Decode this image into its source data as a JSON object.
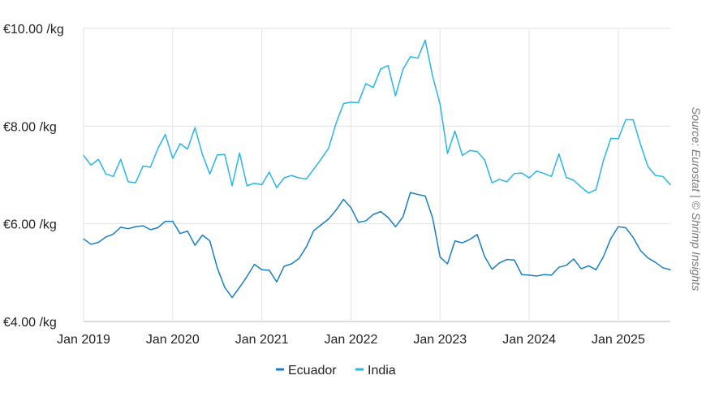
{
  "chart_data": {
    "type": "line",
    "source": "Source: Eurostat | © Shrimp Insights",
    "ylim": [
      4,
      10
    ],
    "yticks": [
      {
        "value": 10,
        "label": "€10.00 /kg"
      },
      {
        "value": 8,
        "label": "€8.00 /kg"
      },
      {
        "value": 6,
        "label": "€6.00 /kg"
      },
      {
        "value": 4,
        "label": "€4.00 /kg"
      }
    ],
    "xticks": [
      {
        "value": 0,
        "label": "Jan 2019"
      },
      {
        "value": 12,
        "label": "Jan 2020"
      },
      {
        "value": 24,
        "label": "Jan 2021"
      },
      {
        "value": 36,
        "label": "Jan 2022"
      },
      {
        "value": 48,
        "label": "Jan 2023"
      },
      {
        "value": 60,
        "label": "Jan 2024"
      },
      {
        "value": 72,
        "label": "Jan 2025"
      }
    ],
    "x_start": "Jan 2019",
    "grid": true,
    "legend": "bottom",
    "series": [
      {
        "name": "Ecuador",
        "color": "#1a7fc1",
        "values": [
          5.69,
          5.58,
          5.62,
          5.73,
          5.79,
          5.93,
          5.9,
          5.94,
          5.96,
          5.88,
          5.92,
          6.05,
          6.05,
          5.8,
          5.85,
          5.56,
          5.77,
          5.65,
          5.1,
          4.7,
          4.49,
          4.7,
          4.92,
          5.17,
          5.06,
          5.05,
          4.81,
          5.13,
          5.18,
          5.29,
          5.53,
          5.86,
          5.98,
          6.1,
          6.28,
          6.5,
          6.33,
          6.03,
          6.06,
          6.19,
          6.25,
          6.13,
          5.94,
          6.14,
          6.64,
          6.6,
          6.57,
          6.12,
          5.32,
          5.18,
          5.65,
          5.61,
          5.68,
          5.78,
          5.33,
          5.07,
          5.2,
          5.27,
          5.26,
          4.96,
          4.95,
          4.93,
          4.96,
          4.95,
          5.11,
          5.15,
          5.28,
          5.08,
          5.14,
          5.06,
          5.33,
          5.7,
          5.94,
          5.92,
          5.72,
          5.45,
          5.3,
          5.21,
          5.1,
          5.06
        ]
      },
      {
        "name": "India",
        "color": "#29b6e6",
        "values": [
          7.4,
          7.2,
          7.32,
          7.02,
          6.97,
          7.32,
          6.86,
          6.84,
          7.18,
          7.16,
          7.54,
          7.83,
          7.34,
          7.64,
          7.53,
          7.97,
          7.42,
          7.02,
          7.41,
          7.42,
          6.78,
          7.45,
          6.78,
          6.83,
          6.8,
          7.06,
          6.74,
          6.94,
          6.99,
          6.94,
          6.92,
          7.12,
          7.33,
          7.55,
          8.06,
          8.46,
          8.49,
          8.48,
          8.87,
          8.79,
          9.17,
          9.24,
          8.62,
          9.16,
          9.42,
          9.39,
          9.76,
          9.02,
          8.45,
          7.44,
          7.9,
          7.4,
          7.5,
          7.48,
          7.31,
          6.84,
          6.91,
          6.86,
          7.03,
          7.04,
          6.94,
          7.08,
          7.03,
          6.97,
          7.43,
          6.95,
          6.89,
          6.75,
          6.63,
          6.7,
          7.3,
          7.75,
          7.74,
          8.13,
          8.13,
          7.62,
          7.17,
          6.99,
          6.97,
          6.8
        ]
      }
    ]
  }
}
